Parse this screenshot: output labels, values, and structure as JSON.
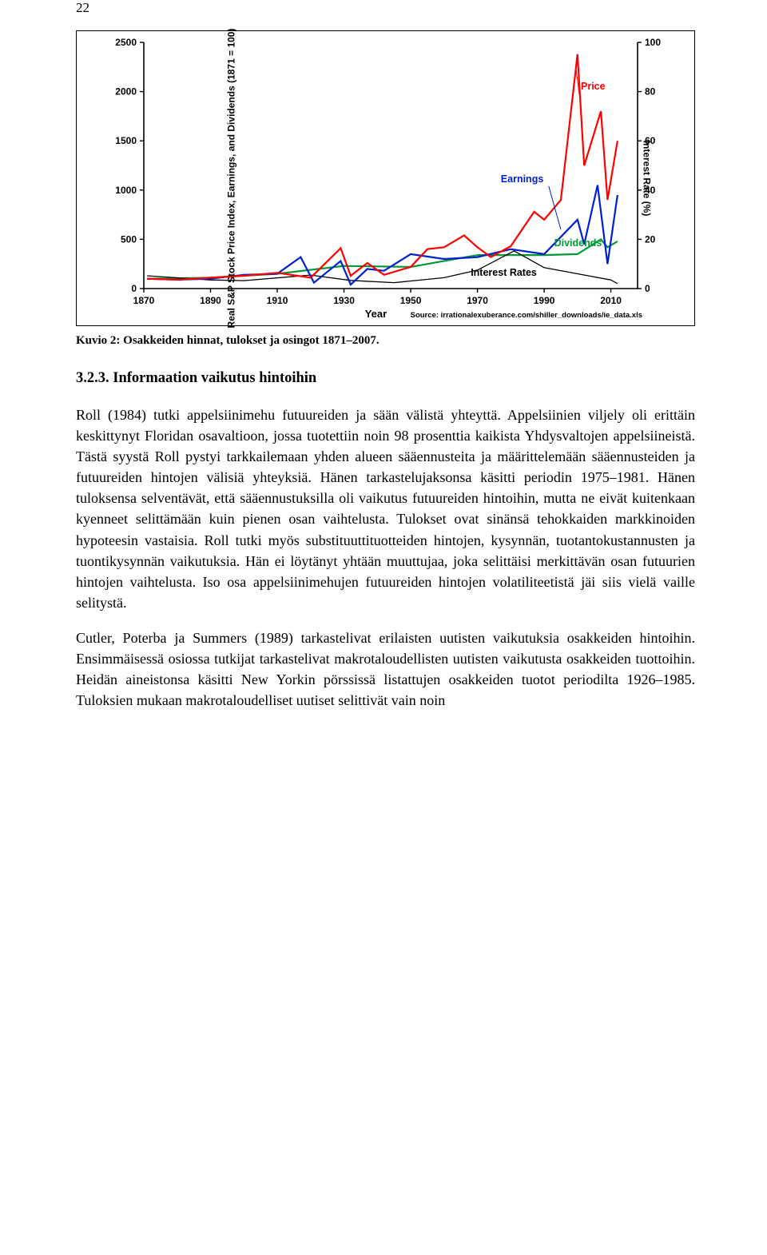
{
  "page_number": "22",
  "chart": {
    "type": "line",
    "y_left_label": "Real S&P Stock Price Index,\nEarnings, and Dividends (1871 = 100)",
    "y_right_label": "Interest Rate (%)",
    "x_label": "Year",
    "source_text": "Source: irrationalexuberance.com/shiller_downloads/ie_data.xls",
    "xlim": [
      1870,
      2018
    ],
    "ylim_left": [
      0,
      2500
    ],
    "ylim_right": [
      0,
      100
    ],
    "x_ticks": [
      "1870",
      "1890",
      "1910",
      "1930",
      "1950",
      "1970",
      "1990",
      "2010"
    ],
    "y_left_ticks": [
      "0",
      "500",
      "1000",
      "1500",
      "2000",
      "2500"
    ],
    "y_right_ticks": [
      "0",
      "20",
      "40",
      "60",
      "80",
      "100"
    ],
    "colors": {
      "price": "#ff0000",
      "earnings": "#0020d0",
      "dividends": "#009933",
      "interest": "#000000",
      "axis": "#000000",
      "bg": "#ffffff"
    },
    "line_width": 2.2,
    "interest_line_width": 1.3,
    "series_labels": {
      "price": "Price",
      "earnings": "Earnings",
      "dividends": "Dividends",
      "interest": "Interest Rates"
    },
    "series": {
      "price": {
        "x": [
          1871,
          1880,
          1890,
          1900,
          1910,
          1920,
          1929,
          1932,
          1937,
          1942,
          1950,
          1955,
          1960,
          1966,
          1970,
          1974,
          1980,
          1987,
          1990,
          1995,
          2000,
          2002,
          2007,
          2009,
          2012
        ],
        "y": [
          100,
          90,
          110,
          130,
          160,
          110,
          410,
          130,
          260,
          140,
          220,
          400,
          420,
          540,
          420,
          320,
          430,
          780,
          700,
          900,
          2380,
          1250,
          1800,
          900,
          1500
        ]
      },
      "earnings": {
        "x": [
          1871,
          1880,
          1890,
          1900,
          1910,
          1917,
          1921,
          1929,
          1932,
          1937,
          1942,
          1950,
          1960,
          1970,
          1980,
          1990,
          2000,
          2002,
          2006,
          2009,
          2012
        ],
        "y": [
          100,
          90,
          100,
          140,
          150,
          320,
          60,
          280,
          40,
          200,
          180,
          350,
          300,
          320,
          400,
          350,
          700,
          450,
          1050,
          250,
          950
        ]
      },
      "dividends": {
        "x": [
          1871,
          1890,
          1910,
          1930,
          1950,
          1970,
          1990,
          2000,
          2007,
          2009,
          2012
        ],
        "y": [
          100,
          110,
          150,
          230,
          220,
          340,
          340,
          350,
          500,
          420,
          480
        ]
      },
      "interest": {
        "x": [
          1871,
          1890,
          1900,
          1920,
          1932,
          1945,
          1960,
          1970,
          1981,
          1990,
          2000,
          2010,
          2012
        ],
        "y": [
          5.2,
          3.5,
          3.2,
          5.5,
          3.3,
          2.4,
          4.4,
          7.5,
          15.3,
          8.5,
          6.0,
          3.5,
          2.0
        ]
      }
    }
  },
  "caption": "Kuvio 2: Osakkeiden hinnat, tulokset ja osingot 1871–2007.",
  "section_heading": "3.2.3. Informaation vaikutus hintoihin",
  "para1": "Roll (1984) tutki appelsiinimehu futuureiden ja sään välistä yhteyttä. Appelsiinien viljely oli erittäin keskittynyt Floridan osavaltioon, jossa tuotettiin noin 98 prosenttia kaikista Yhdysvaltojen appelsiineistä. Tästä syystä Roll pystyi tarkkailemaan yhden alueen sääennusteita ja määrittelemään sääennusteiden ja futuureiden hintojen välisiä yhteyksiä. Hänen tarkastelujaksonsa käsitti periodin 1975–1981. Hänen tuloksensa selventävät, että sääennustuksilla oli vaikutus futuureiden hintoihin, mutta ne eivät kuitenkaan kyenneet selittämään kuin pienen osan vaihtelusta. Tulokset ovat sinänsä tehokkaiden markkinoiden hypoteesin vastaisia. Roll tutki myös substituuttituotteiden hintojen, kysynnän, tuotantokustannusten ja tuontikysynnän vaikutuksia. Hän ei löytänyt yhtään muuttujaa, joka selittäisi merkittävän osan futuurien hintojen vaihtelusta. Iso osa appelsiinimehujen futuureiden hintojen volatiliteetistä jäi siis vielä vaille selitystä.",
  "para2": "Cutler, Poterba ja Summers (1989) tarkastelivat erilaisten uutisten vaikutuksia osakkeiden hintoihin. Ensimmäisessä osiossa tutkijat tarkastelivat makrotaloudellisten uutisten vaikutusta osakkeiden tuottoihin. Heidän aineistonsa käsitti New Yorkin pörssissä listattujen osakkeiden tuotot periodilta 1926–1985. Tuloksien mukaan makrotaloudelliset uutiset selittivät vain noin"
}
